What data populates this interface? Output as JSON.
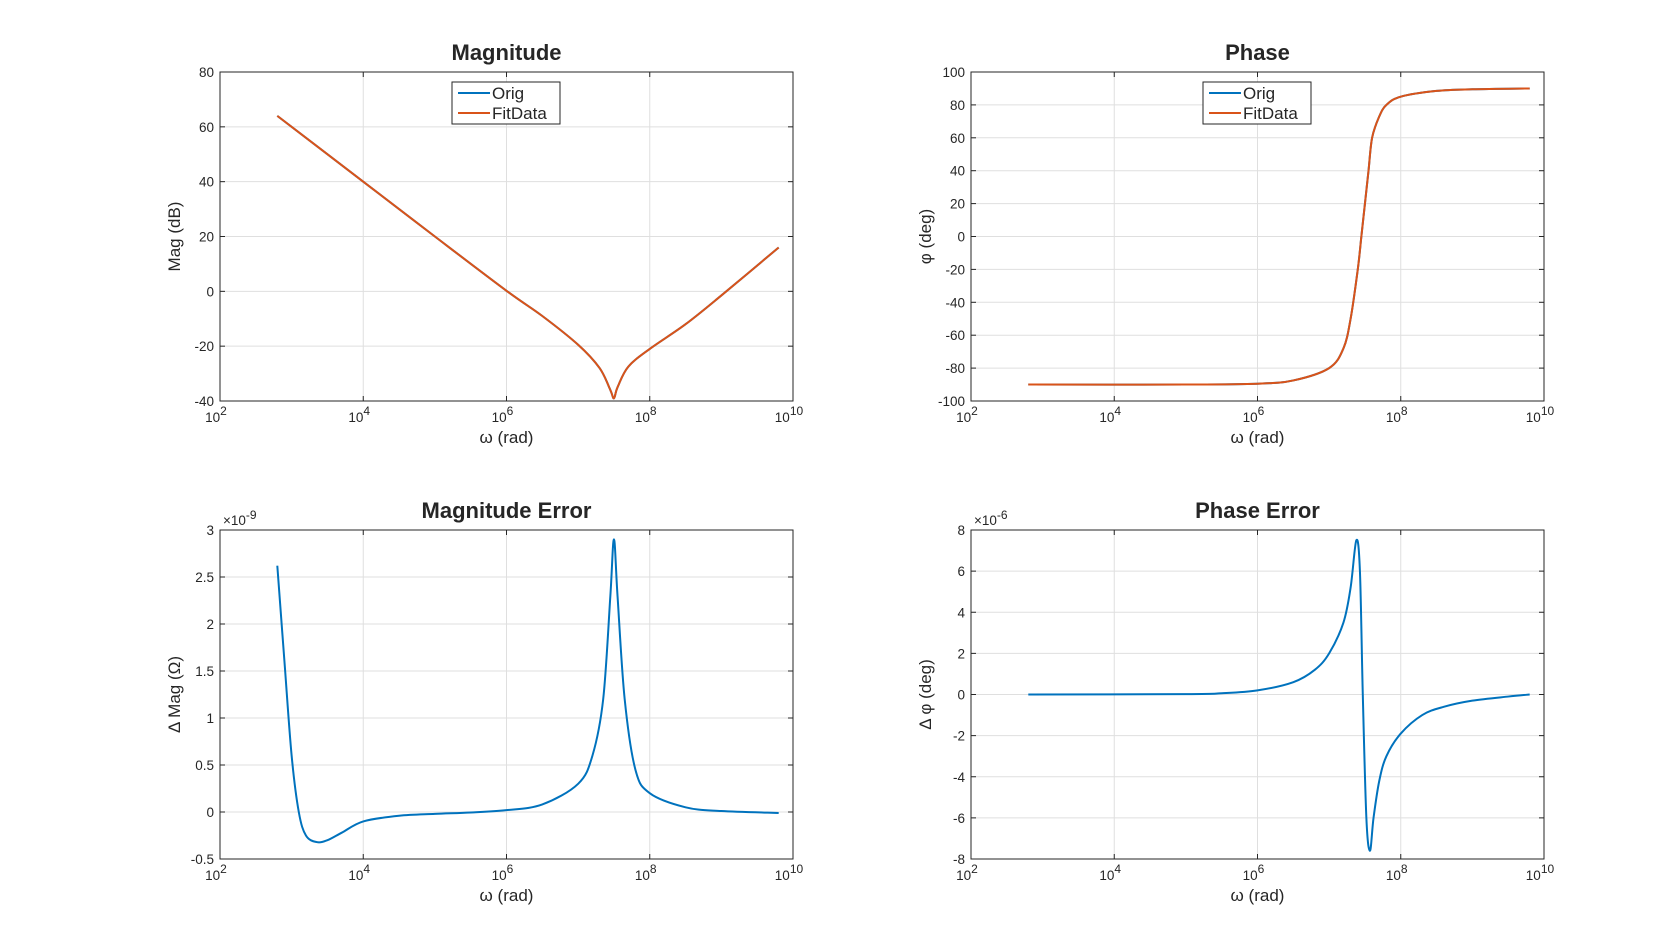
{
  "colors": {
    "orig": "#0072BD",
    "fitdata": "#D95319",
    "grid": "#dfdfdf",
    "axis": "#262626"
  },
  "chart_data": [
    {
      "id": "magnitude",
      "type": "line",
      "title": "Magnitude",
      "xlabel": "ω (rad)",
      "ylabel": "Mag (dB)",
      "xscale": "log",
      "xlim_exp": [
        2,
        10
      ],
      "xtick_base": "10",
      "xtick_exps": [
        "2",
        "4",
        "6",
        "8",
        "10"
      ],
      "ylim": [
        -40,
        80
      ],
      "yticks": [
        -40,
        -20,
        0,
        20,
        40,
        60,
        80
      ],
      "grid": true,
      "legend": {
        "placement": "top-center",
        "entries": [
          "Orig",
          "FitData"
        ]
      },
      "series": [
        {
          "name": "Orig",
          "color": "orig",
          "log10x": [
            2.8,
            4,
            5,
            6,
            6.5,
            7,
            7.3,
            7.45,
            7.5,
            7.55,
            7.7,
            8,
            8.5,
            9,
            9.8
          ],
          "y": [
            64,
            40,
            20,
            0.2,
            -9,
            -19.5,
            -28,
            -36,
            -39,
            -35,
            -27.5,
            -21,
            -12,
            -1.5,
            16
          ]
        },
        {
          "name": "FitData",
          "color": "fitdata",
          "log10x": [
            2.8,
            4,
            5,
            6,
            6.5,
            7,
            7.3,
            7.45,
            7.5,
            7.55,
            7.7,
            8,
            8.5,
            9,
            9.8
          ],
          "y": [
            64,
            40,
            20,
            0.2,
            -9,
            -19.5,
            -28,
            -36,
            -39,
            -35,
            -27.5,
            -21,
            -12,
            -1.5,
            16
          ]
        }
      ]
    },
    {
      "id": "phase",
      "type": "line",
      "title": "Phase",
      "xlabel": "ω (rad)",
      "ylabel": "φ (deg)",
      "xscale": "log",
      "xlim_exp": [
        2,
        10
      ],
      "xtick_base": "10",
      "xtick_exps": [
        "2",
        "4",
        "6",
        "8",
        "10"
      ],
      "ylim": [
        -100,
        100
      ],
      "yticks": [
        -100,
        -80,
        -60,
        -40,
        -20,
        0,
        20,
        40,
        60,
        80,
        100
      ],
      "grid": true,
      "legend": {
        "placement": "top-center",
        "entries": [
          "Orig",
          "FitData"
        ]
      },
      "series": [
        {
          "name": "Orig",
          "color": "orig",
          "log10x": [
            2.8,
            5,
            6,
            6.5,
            7,
            7.2,
            7.3,
            7.4,
            7.45,
            7.5,
            7.55,
            7.6,
            7.7,
            7.8,
            8,
            8.5,
            9,
            9.8
          ],
          "y": [
            -90,
            -90,
            -89.5,
            -87.5,
            -80,
            -68,
            -50,
            -20,
            0,
            20,
            40,
            60,
            73,
            80,
            85,
            88.5,
            89.5,
            90
          ]
        },
        {
          "name": "FitData",
          "color": "fitdata",
          "log10x": [
            2.8,
            5,
            6,
            6.5,
            7,
            7.2,
            7.3,
            7.4,
            7.45,
            7.5,
            7.55,
            7.6,
            7.7,
            7.8,
            8,
            8.5,
            9,
            9.8
          ],
          "y": [
            -90,
            -90,
            -89.5,
            -87.5,
            -80,
            -68,
            -50,
            -20,
            0,
            20,
            40,
            60,
            73,
            80,
            85,
            88.5,
            89.5,
            90
          ]
        }
      ]
    },
    {
      "id": "magnitude-error",
      "type": "line",
      "title": "Magnitude Error",
      "xlabel": "ω (rad)",
      "ylabel": "Δ Mag (Ω)",
      "xscale": "log",
      "xlim_exp": [
        2,
        10
      ],
      "xtick_base": "10",
      "xtick_exps": [
        "2",
        "4",
        "6",
        "8",
        "10"
      ],
      "ylim": [
        -0.5,
        3
      ],
      "yticks": [
        -0.5,
        0,
        0.5,
        1,
        1.5,
        2,
        2.5,
        3
      ],
      "ytick_labels": [
        "-0.5",
        "0",
        "0.5",
        "1",
        "1.5",
        "2",
        "2.5",
        "3"
      ],
      "y_multiplier_base": "×10",
      "y_multiplier_exp": "-9",
      "grid": true,
      "series": [
        {
          "color": "orig",
          "log10x": [
            2.8,
            2.9,
            3,
            3.1,
            3.2,
            3.35,
            3.5,
            3.7,
            4,
            4.5,
            5,
            5.5,
            6,
            6.5,
            7,
            7.2,
            7.35,
            7.45,
            7.5,
            7.55,
            7.65,
            7.8,
            8,
            8.5,
            9,
            9.8
          ],
          "y": [
            2.62,
            1.6,
            0.6,
            0.0,
            -0.25,
            -0.32,
            -0.3,
            -0.22,
            -0.1,
            -0.04,
            -0.02,
            -0.005,
            0.02,
            0.08,
            0.3,
            0.6,
            1.2,
            2.3,
            2.9,
            2.3,
            1.2,
            0.45,
            0.2,
            0.05,
            0.01,
            -0.01
          ]
        }
      ]
    },
    {
      "id": "phase-error",
      "type": "line",
      "title": "Phase Error",
      "xlabel": "ω (rad)",
      "ylabel": "Δ φ (deg)",
      "xscale": "log",
      "xlim_exp": [
        2,
        10
      ],
      "xtick_base": "10",
      "xtick_exps": [
        "2",
        "4",
        "6",
        "8",
        "10"
      ],
      "ylim": [
        -8,
        8
      ],
      "yticks": [
        -8,
        -6,
        -4,
        -2,
        0,
        2,
        4,
        6,
        8
      ],
      "ytick_labels": [
        "-8",
        "-6",
        "-4",
        "-2",
        "0",
        "2",
        "4",
        "6",
        "8"
      ],
      "y_multiplier_base": "×10",
      "y_multiplier_exp": "-6",
      "grid": true,
      "series": [
        {
          "color": "orig",
          "log10x": [
            2.8,
            5,
            5.5,
            6,
            6.5,
            6.8,
            7,
            7.2,
            7.3,
            7.38,
            7.43,
            7.47,
            7.52,
            7.57,
            7.62,
            7.7,
            7.8,
            8,
            8.3,
            8.6,
            9,
            9.5,
            9.8
          ],
          "y": [
            0,
            0.02,
            0.06,
            0.2,
            0.6,
            1.2,
            2.0,
            3.5,
            5.2,
            7.5,
            6.0,
            0,
            -6.0,
            -7.6,
            -6.0,
            -4.2,
            -3.0,
            -1.9,
            -1.0,
            -0.6,
            -0.3,
            -0.1,
            0
          ]
        }
      ]
    }
  ]
}
